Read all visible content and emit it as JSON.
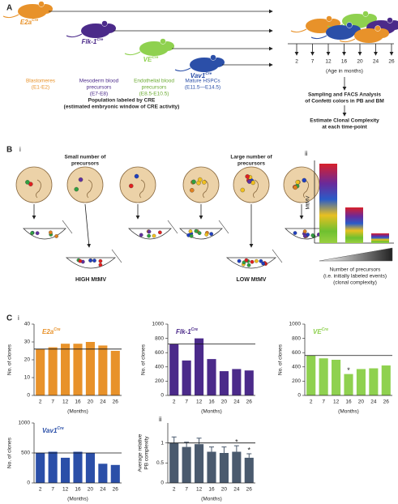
{
  "figure": {
    "panel_a": {
      "label": "A",
      "mice": [
        {
          "name": "E2a",
          "sup": "Cre",
          "desc": [
            "Blastomeres",
            "(E1-E2)"
          ]
        },
        {
          "name": "Flk-1",
          "sup": "Cre",
          "desc": [
            "Mesoderm blood",
            "precursors",
            "(E7-E8)"
          ]
        },
        {
          "name": "VE",
          "sup": "Cre",
          "desc": [
            "Endothelial blood",
            "precursors",
            "(E8.5-E10.5)"
          ]
        },
        {
          "name": "Vav1",
          "sup": "Cre",
          "desc": [
            "Mature HSPCs",
            "(E11.5—E14.5)"
          ]
        }
      ],
      "population": [
        "Population labeled by CRE",
        "(estimated embryonic window of CRE activity)"
      ],
      "timepoints": [
        "2",
        "7",
        "12",
        "16",
        "20",
        "24",
        "26"
      ],
      "age_label": "(Age in months)",
      "sampling": [
        "Sampling and FACS Analysis",
        "of Confetti colors in PB and BM"
      ],
      "estimate": [
        "Estimate Clonal Complexity",
        "at each time-point"
      ]
    },
    "panel_b": {
      "label": "B",
      "sub_i": "i",
      "sub_ii": "ii",
      "small": [
        "Small number of",
        "precursors"
      ],
      "large": [
        "Large number of",
        "precursors"
      ],
      "high": "HIGH MtMV",
      "low": "LOW MtMV",
      "ylabel": "MtMV",
      "xlabel": [
        "Number of precursors",
        "(i.e. initially labeled events)",
        "(clonal complexity)"
      ]
    },
    "panel_c": {
      "label": "C",
      "sub_i": "i",
      "sub_ii": "ii"
    }
  },
  "chart_data": [
    {
      "type": "bar",
      "title": "E2a",
      "title_sup": "Cre",
      "ylabel": "No. of clones",
      "xlabel": "(Months)",
      "categories": [
        "2",
        "7",
        "12",
        "16",
        "20",
        "24",
        "26"
      ],
      "values": [
        26,
        27,
        29,
        29,
        30,
        28,
        25
      ],
      "color": "#e8922a",
      "ylim": [
        0,
        40
      ],
      "yticks": [
        0,
        10,
        20,
        30,
        40
      ],
      "ref_line": 26
    },
    {
      "type": "bar",
      "title": "Flk-1",
      "title_sup": "Cre",
      "ylabel": "No. of clones",
      "xlabel": "(Months)",
      "categories": [
        "2",
        "7",
        "12",
        "16",
        "20",
        "24",
        "26"
      ],
      "values": [
        720,
        490,
        800,
        510,
        340,
        370,
        350
      ],
      "color": "#4b2a8a",
      "ylim": [
        0,
        1000
      ],
      "yticks": [
        0,
        200,
        400,
        600,
        800,
        1000
      ],
      "ref_line": 720
    },
    {
      "type": "bar",
      "title": "VE",
      "title_sup": "Cre",
      "ylabel": "No. of clones",
      "xlabel": "(Months)",
      "categories": [
        "2",
        "7",
        "12",
        "16",
        "20",
        "24",
        "26"
      ],
      "values": [
        560,
        520,
        500,
        300,
        370,
        380,
        420
      ],
      "color": "#8fd14f",
      "ylim": [
        0,
        1000
      ],
      "yticks": [
        0,
        200,
        400,
        600,
        800,
        1000
      ],
      "ref_line": 560,
      "annotations": [
        {
          "x": "16",
          "text": "*"
        }
      ]
    },
    {
      "type": "bar",
      "title": "Vav1",
      "title_sup": "Cre",
      "ylabel": "No. of clones",
      "xlabel": "(Months)",
      "categories": [
        "2",
        "7",
        "12",
        "16",
        "20",
        "24",
        "26"
      ],
      "values": [
        500,
        520,
        420,
        520,
        500,
        320,
        300
      ],
      "color": "#2b4fa8",
      "ylim": [
        0,
        1000
      ],
      "yticks": [
        0,
        500,
        1000
      ],
      "ref_line": 500
    },
    {
      "type": "bar",
      "ylabel": [
        "Average relative",
        "PB complexity"
      ],
      "xlabel": "(Months)",
      "categories": [
        "2",
        "7",
        "12",
        "16",
        "20",
        "24",
        "26"
      ],
      "values": [
        1,
        0.9,
        0.97,
        0.78,
        0.75,
        0.78,
        0.63
      ],
      "errors": [
        0.15,
        0.12,
        0.15,
        0.12,
        0.15,
        0.15,
        0.1
      ],
      "color": "#4a5a6e",
      "ylim": [
        0,
        1.5
      ],
      "yticks": [
        0,
        0.5,
        1
      ],
      "ref_line": 1,
      "annotations": [
        {
          "x": "24",
          "text": "*"
        },
        {
          "x": "26",
          "text": "*"
        }
      ]
    }
  ]
}
